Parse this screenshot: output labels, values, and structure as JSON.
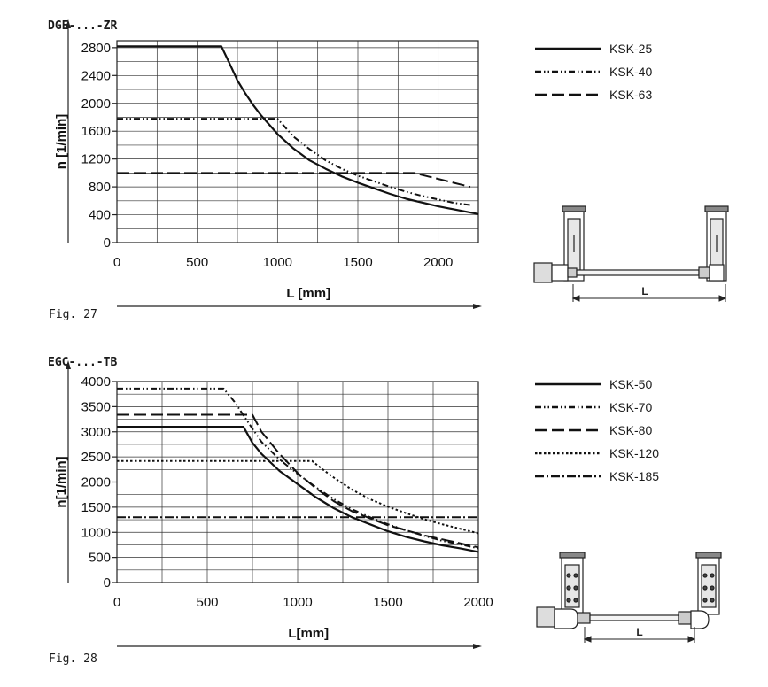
{
  "chart_data": [
    {
      "type": "line",
      "title": "DGE-...-ZR",
      "xlabel": "L [mm]",
      "ylabel": "n [1/min]",
      "xlim": [
        0,
        2250
      ],
      "ylim": [
        0,
        2900
      ],
      "x_ticks": [
        0,
        500,
        1000,
        1500,
        2000
      ],
      "y_ticks": [
        0,
        400,
        800,
        1200,
        1600,
        2000,
        2400,
        2800
      ],
      "x_tick_labels": [
        "0",
        "500",
        "1000",
        "1500",
        "2000"
      ],
      "y_tick_labels": [
        "0",
        "400",
        "800",
        "1200",
        "1600",
        "2000",
        "2400",
        "2800"
      ],
      "grid": true,
      "legend_position": "right",
      "series": [
        {
          "name": "KSK-25",
          "style": "solid",
          "x": [
            0,
            650,
            700,
            750,
            800,
            850,
            900,
            1000,
            1100,
            1200,
            1300,
            1400,
            1500,
            1600,
            1700,
            1800,
            2000,
            2250
          ],
          "y": [
            2820,
            2820,
            2580,
            2330,
            2140,
            1970,
            1820,
            1560,
            1350,
            1180,
            1060,
            950,
            860,
            780,
            700,
            630,
            520,
            410
          ]
        },
        {
          "name": "KSK-40",
          "style": "dash-dot-dot",
          "x": [
            0,
            1000,
            1100,
            1200,
            1300,
            1400,
            1500,
            1600,
            1700,
            1800,
            1900,
            2000,
            2100,
            2200
          ],
          "y": [
            1780,
            1780,
            1520,
            1340,
            1180,
            1060,
            960,
            880,
            800,
            730,
            670,
            620,
            570,
            540
          ]
        },
        {
          "name": "KSK-63",
          "style": "long-dash",
          "x": [
            0,
            1850,
            2200
          ],
          "y": [
            1000,
            1000,
            800
          ]
        }
      ],
      "figure_label": "Fig.  27",
      "diagram_dimension_label": "L"
    },
    {
      "type": "line",
      "title": "EGC-...-TB",
      "xlabel": "L[mm]",
      "ylabel": "n[1/min]",
      "xlim": [
        0,
        2000
      ],
      "ylim": [
        0,
        4000
      ],
      "x_ticks": [
        0,
        500,
        1000,
        1500,
        2000
      ],
      "y_ticks": [
        0,
        500,
        1000,
        1500,
        2000,
        2500,
        3000,
        3500,
        4000
      ],
      "x_tick_labels": [
        "0",
        "500",
        "1000",
        "1500",
        "2000"
      ],
      "y_tick_labels": [
        "0",
        "500",
        "1000",
        "1500",
        "2000",
        "2500",
        "3000",
        "3500",
        "4000"
      ],
      "grid": true,
      "legend_position": "right",
      "series": [
        {
          "name": "KSK-50",
          "style": "solid",
          "x": [
            0,
            700,
            750,
            800,
            900,
            1000,
            1100,
            1200,
            1300,
            1400,
            1500,
            1600,
            1700,
            1800,
            1900,
            2000
          ],
          "y": [
            3100,
            3100,
            2780,
            2560,
            2220,
            1960,
            1700,
            1480,
            1300,
            1160,
            1020,
            910,
            820,
            740,
            680,
            610
          ]
        },
        {
          "name": "KSK-70",
          "style": "dash-dot-dot",
          "x": [
            0,
            590,
            650,
            700,
            750,
            800,
            900,
            1000,
            1100,
            1200,
            1300,
            1400,
            1500,
            1600,
            1700,
            1800,
            1900,
            2000
          ],
          "y": [
            3860,
            3860,
            3600,
            3330,
            3060,
            2800,
            2450,
            2160,
            1900,
            1660,
            1460,
            1300,
            1160,
            1040,
            930,
            830,
            760,
            680
          ]
        },
        {
          "name": "KSK-80",
          "style": "long-dash",
          "x": [
            0,
            750,
            800,
            900,
            1000,
            1100,
            1200,
            1300,
            1400,
            1500,
            1600,
            1700,
            1800,
            1900,
            2000
          ],
          "y": [
            3340,
            3340,
            3000,
            2560,
            2180,
            1880,
            1620,
            1420,
            1280,
            1140,
            1040,
            940,
            860,
            780,
            700
          ]
        },
        {
          "name": "KSK-120",
          "style": "dotted",
          "x": [
            0,
            1080,
            1150,
            1200,
            1300,
            1400,
            1500,
            1600,
            1700,
            1800,
            1900,
            2000
          ],
          "y": [
            2420,
            2420,
            2220,
            2090,
            1850,
            1660,
            1510,
            1380,
            1260,
            1160,
            1070,
            980
          ]
        },
        {
          "name": "KSK-185",
          "style": "dash-dot",
          "x": [
            0,
            2000
          ],
          "y": [
            1300,
            1300
          ]
        }
      ],
      "figure_label": "Fig.  28",
      "diagram_dimension_label": "L"
    }
  ]
}
